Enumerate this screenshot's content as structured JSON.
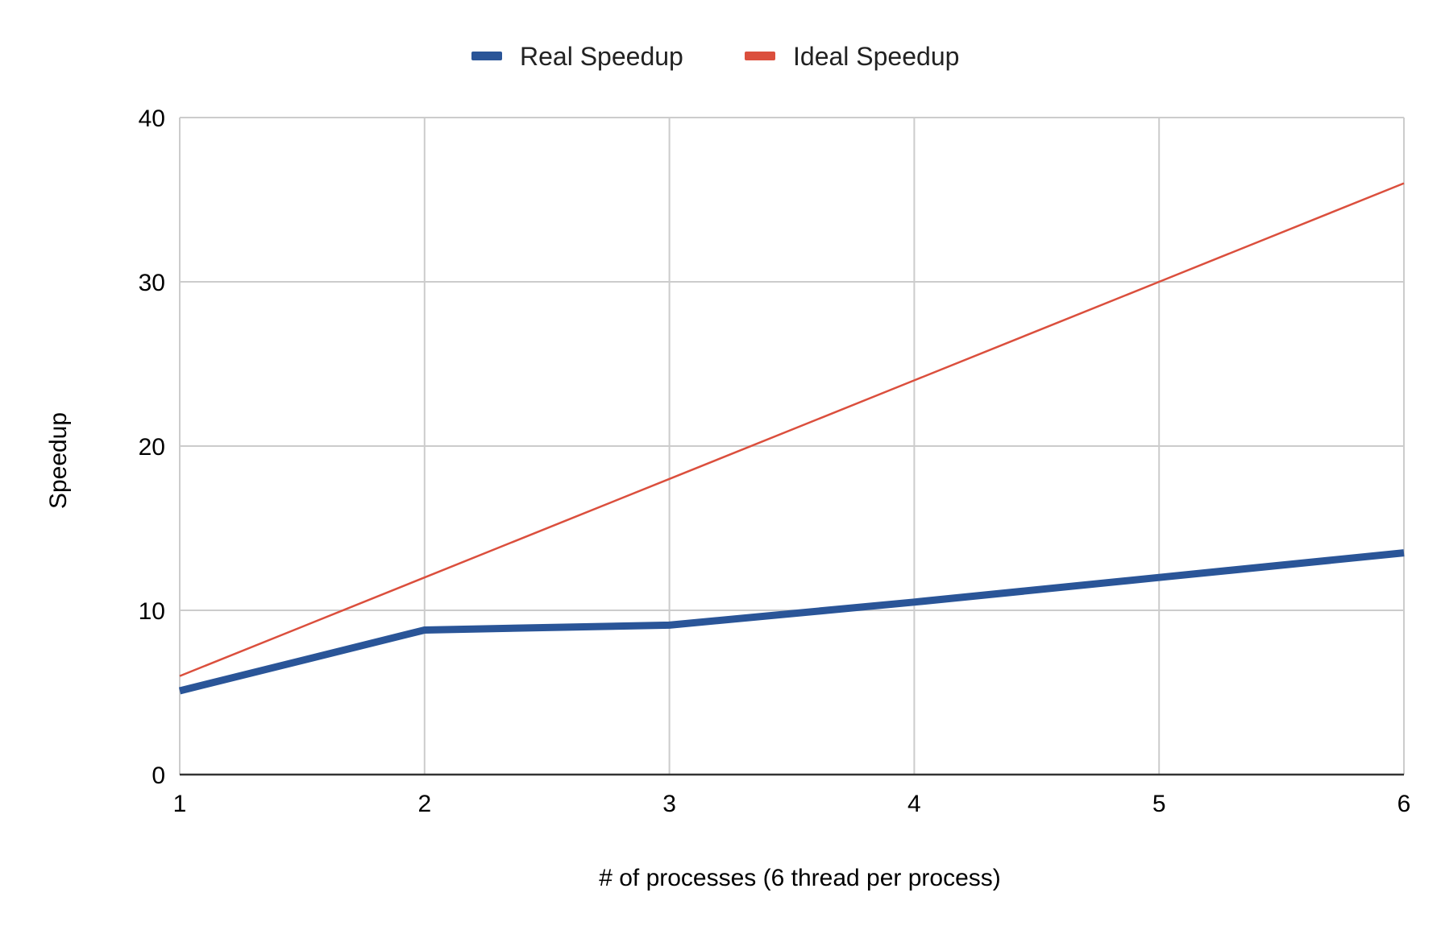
{
  "chart_data": {
    "type": "line",
    "title": "",
    "xlabel": "# of processes (6 thread per process)",
    "ylabel": "Speedup",
    "x": [
      1,
      2,
      3,
      4,
      5,
      6
    ],
    "x_tick_labels": [
      "1",
      "2",
      "3",
      "4",
      "5",
      "6"
    ],
    "xlim": [
      1,
      6
    ],
    "ylim": [
      0,
      40
    ],
    "y_ticks": [
      0,
      10,
      20,
      30,
      40
    ],
    "grid": true,
    "legend_position": "top-center",
    "series": [
      {
        "name": "Real Speedup",
        "values": [
          5.1,
          8.8,
          9.1,
          10.5,
          12.0,
          13.5
        ],
        "color": "#2a5598"
      },
      {
        "name": "Ideal Speedup",
        "values": [
          6,
          12,
          18,
          24,
          30,
          36
        ],
        "color": "#db4f3d"
      }
    ]
  }
}
